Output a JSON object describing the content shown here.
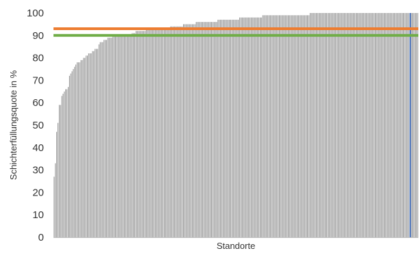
{
  "chart_data": {
    "type": "bar",
    "xlabel": "Standorte",
    "ylabel": "Schichterfüllungsquote in %",
    "ylim": [
      0,
      100
    ],
    "yticks": [
      0,
      10,
      20,
      30,
      40,
      50,
      60,
      70,
      80,
      90,
      100
    ],
    "grid": false,
    "series_color": "#808080",
    "highlight": {
      "index": 278,
      "color": "#4472C4"
    },
    "reference_lines": [
      {
        "value": 93,
        "color": "#ED7D31"
      },
      {
        "value": 90,
        "color": "#70AD47"
      }
    ],
    "values": [
      27,
      33,
      47,
      51,
      59,
      59,
      63,
      64,
      65,
      66,
      66,
      67,
      72,
      73,
      74,
      75,
      76,
      77,
      78,
      78,
      78,
      79,
      79,
      80,
      80,
      81,
      81,
      82,
      82,
      82,
      83,
      83,
      84,
      84,
      84,
      86,
      87,
      87,
      87,
      88,
      88,
      88,
      89,
      89,
      89,
      89,
      90,
      90,
      90,
      90,
      90,
      90,
      90,
      90,
      90,
      90,
      90,
      90,
      90,
      90,
      90,
      91,
      91,
      91,
      92,
      92,
      92,
      92,
      92,
      92,
      92,
      92,
      93,
      93,
      93,
      93,
      93,
      93,
      93,
      93,
      93,
      93,
      93,
      93,
      93,
      93,
      93,
      93,
      93,
      93,
      93,
      94,
      94,
      94,
      94,
      94,
      94,
      94,
      94,
      94,
      94,
      95,
      95,
      95,
      95,
      95,
      95,
      95,
      95,
      95,
      95,
      96,
      96,
      96,
      96,
      96,
      96,
      96,
      96,
      96,
      96,
      96,
      96,
      96,
      96,
      96,
      96,
      96,
      97,
      97,
      97,
      97,
      97,
      97,
      97,
      97,
      97,
      97,
      97,
      97,
      97,
      97,
      97,
      97,
      97,
      98,
      98,
      98,
      98,
      98,
      98,
      98,
      98,
      98,
      98,
      98,
      98,
      98,
      98,
      98,
      98,
      98,
      98,
      99,
      99,
      99,
      99,
      99,
      99,
      99,
      99,
      99,
      99,
      99,
      99,
      99,
      99,
      99,
      99,
      99,
      99,
      99,
      99,
      99,
      99,
      99,
      99,
      99,
      99,
      99,
      99,
      99,
      99,
      99,
      99,
      99,
      99,
      99,
      99,
      99,
      100,
      100,
      100,
      100,
      100,
      100,
      100,
      100,
      100,
      100,
      100,
      100,
      100,
      100,
      100,
      100,
      100,
      100,
      100,
      100,
      100,
      100,
      100,
      100,
      100,
      100,
      100,
      100,
      100,
      100,
      100,
      100,
      100,
      100,
      100,
      100,
      100,
      100,
      100,
      100,
      100,
      100,
      100,
      100,
      100,
      100,
      100,
      100,
      100,
      100,
      100,
      100,
      100,
      100,
      100,
      100,
      100,
      100,
      100,
      100,
      100,
      100,
      100,
      100,
      100,
      100,
      100,
      100,
      100,
      100,
      100,
      100,
      100,
      100,
      100,
      100,
      100,
      100,
      100,
      100,
      100,
      100,
      100,
      100,
      100
    ]
  }
}
